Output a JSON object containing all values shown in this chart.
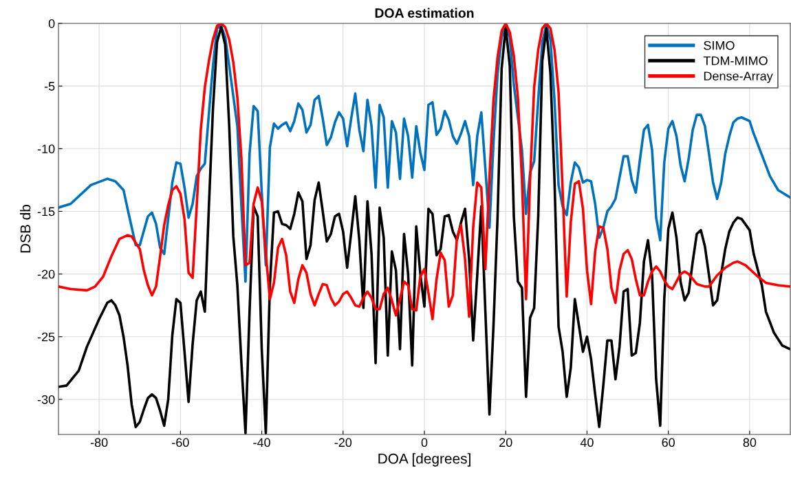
{
  "chart_data": {
    "type": "line",
    "title": "DOA estimation",
    "xlabel": "DOA [degrees]",
    "ylabel": "DSB db",
    "xlim": [
      -90,
      90
    ],
    "ylim": [
      -32.8,
      0
    ],
    "xticks": [
      -80,
      -60,
      -40,
      -20,
      0,
      20,
      40,
      60,
      80
    ],
    "yticks": [
      -30,
      -25,
      -20,
      -15,
      -10,
      -5,
      0
    ],
    "grid": true,
    "legend": "top right",
    "marker": "none",
    "line_style": "solid",
    "series": [
      {
        "name": "SIMO",
        "color": "#0072bd",
        "x": [
          -90,
          -87,
          -82,
          -78,
          -76,
          -74,
          -73,
          -71,
          -70,
          -68,
          -67,
          -66,
          -65,
          -64,
          -62,
          -61,
          -60,
          -59,
          -58,
          -57,
          -56,
          -55,
          -54,
          -53,
          -52,
          -51,
          -50,
          -49,
          -48,
          -46,
          -45,
          -44,
          -43,
          -42,
          -41,
          -40,
          -39,
          -38,
          -37,
          -36,
          -35,
          -34,
          -33,
          -32,
          -31,
          -30,
          -29,
          -28,
          -27,
          -26,
          -25,
          -24,
          -23,
          -22,
          -21,
          -20,
          -19,
          -18,
          -17,
          -16,
          -15,
          -14,
          -13,
          -12,
          -11,
          -10,
          -9,
          -8,
          -7,
          -6,
          -5,
          -4,
          -3,
          -2,
          -1,
          0,
          1,
          2,
          3,
          4,
          5,
          6,
          7,
          8,
          9,
          10,
          11,
          12,
          13,
          14,
          15,
          16,
          17,
          18,
          19,
          20,
          21,
          22,
          23,
          24,
          25,
          26,
          27,
          28,
          29,
          30,
          31,
          32,
          33,
          34,
          35,
          36,
          37,
          38,
          39,
          40,
          41,
          42,
          43,
          44,
          45,
          46,
          47,
          48,
          49,
          50,
          51,
          52,
          53,
          54,
          55,
          56,
          57,
          58,
          59,
          60,
          61,
          62,
          63,
          64,
          65,
          66,
          67,
          68,
          69,
          70,
          71,
          72,
          73,
          74,
          75,
          76,
          77,
          78,
          80,
          81,
          83,
          85,
          87,
          90
        ],
        "values": [
          -14.7,
          -14.4,
          -12.9,
          -12.4,
          -12.6,
          -13.3,
          -14.8,
          -17.7,
          -17.7,
          -15.4,
          -15.1,
          -16.0,
          -17.9,
          -18.4,
          -12.7,
          -11.1,
          -11.2,
          -13.1,
          -15.5,
          -14.4,
          -12.2,
          -11.6,
          -11.2,
          -7.2,
          -3.4,
          -0.4,
          -0.2,
          -1.1,
          -3.4,
          -8.2,
          -14.6,
          -20.6,
          -10.4,
          -6.6,
          -7.0,
          -13.5,
          -19.3,
          -9.9,
          -8.0,
          -8.4,
          -8.1,
          -7.9,
          -8.6,
          -7.8,
          -6.4,
          -6.9,
          -8.7,
          -8.1,
          -6.1,
          -5.8,
          -7.6,
          -9.7,
          -9.1,
          -7.9,
          -7.1,
          -7.6,
          -9.8,
          -7.6,
          -5.6,
          -8.5,
          -10.2,
          -6.1,
          -8.2,
          -13.1,
          -6.5,
          -7.5,
          -13.1,
          -7.8,
          -8.7,
          -12.4,
          -7.6,
          -9.0,
          -12.3,
          -8.2,
          -10.3,
          -11.7,
          -6.5,
          -6.3,
          -8.9,
          -8.4,
          -7.0,
          -7.7,
          -9.0,
          -9.6,
          -8.8,
          -7.8,
          -9.0,
          -12.9,
          -9.0,
          -7.1,
          -11.6,
          -16.3,
          -9.5,
          -4.0,
          -1.1,
          -0.2,
          -1.1,
          -4.9,
          -7.5,
          -10.1,
          -15.2,
          -11.9,
          -11.0,
          -6.1,
          -1.5,
          -0.1,
          -1.3,
          -6.1,
          -12.9,
          -14.6,
          -15.3,
          -12.7,
          -11.1,
          -11.5,
          -12.7,
          -12.5,
          -12.6,
          -14.4,
          -17.1,
          -16.3,
          -15.0,
          -14.6,
          -14.0,
          -12.3,
          -10.6,
          -10.6,
          -12.5,
          -13.5,
          -10.9,
          -8.5,
          -8.1,
          -10.1,
          -15.5,
          -17.3,
          -11.1,
          -8.4,
          -7.8,
          -9.0,
          -11.3,
          -12.6,
          -10.8,
          -8.5,
          -7.3,
          -7.3,
          -8.2,
          -10.4,
          -12.7,
          -14.0,
          -12.7,
          -10.4,
          -9.0,
          -7.9,
          -7.6,
          -7.5,
          -7.8,
          -8.8,
          -10.5,
          -12.2,
          -13.3,
          -13.9
        ]
      },
      {
        "name": "TDM-MIMO",
        "color": "#000000",
        "x": [
          -90,
          -88,
          -85,
          -83,
          -80,
          -78,
          -77,
          -76,
          -75,
          -74,
          -73,
          -72,
          -71,
          -70,
          -69,
          -68,
          -67,
          -66,
          -65,
          -64,
          -63,
          -62,
          -61,
          -60,
          -59,
          -58,
          -57,
          -56,
          -55,
          -54,
          -53,
          -52,
          -51,
          -50,
          -49,
          -48,
          -47,
          -46,
          -45,
          -44,
          -43,
          -42,
          -41,
          -40,
          -39,
          -38,
          -37,
          -36,
          -35,
          -34,
          -33,
          -32,
          -31,
          -30,
          -29,
          -28,
          -27,
          -26,
          -25,
          -24,
          -23,
          -22,
          -21,
          -20,
          -19,
          -18,
          -17,
          -16,
          -15,
          -14,
          -13,
          -12,
          -11,
          -10,
          -9,
          -8,
          -7,
          -6,
          -5,
          -4,
          -3,
          -2,
          -1,
          0,
          1,
          2,
          3,
          4,
          5,
          6,
          7,
          8,
          9,
          10,
          11,
          12,
          13,
          14,
          15,
          16,
          17,
          18,
          19,
          20,
          21,
          22,
          23,
          24,
          25,
          26,
          27,
          28,
          29,
          30,
          31,
          32,
          33,
          34,
          35,
          36,
          37,
          38,
          39,
          40,
          41,
          42,
          43,
          44,
          45,
          46,
          47,
          48,
          49,
          50,
          51,
          52,
          53,
          54,
          55,
          56,
          57,
          58,
          59,
          60,
          61,
          62,
          63,
          64,
          65,
          66,
          67,
          68,
          69,
          70,
          71,
          72,
          73,
          74,
          75,
          76,
          77,
          78,
          80,
          81,
          83,
          84,
          86,
          88,
          90
        ],
        "values": [
          -29.0,
          -28.9,
          -27.7,
          -25.8,
          -23.6,
          -22.3,
          -22.1,
          -22.5,
          -23.3,
          -25.0,
          -27.3,
          -30.4,
          -32.2,
          -31.8,
          -30.8,
          -29.9,
          -29.6,
          -29.9,
          -30.9,
          -32.1,
          -30.0,
          -24.9,
          -22.0,
          -22.3,
          -26.2,
          -30.2,
          -25.6,
          -22.1,
          -21.4,
          -23.0,
          -14.6,
          -6.8,
          -1.5,
          -0.3,
          -1.7,
          -8.2,
          -17.0,
          -20.9,
          -27.1,
          -32.7,
          -23.0,
          -14.6,
          -15.4,
          -26.0,
          -32.7,
          -20.9,
          -15.1,
          -15.0,
          -16.0,
          -16.1,
          -16.4,
          -15.2,
          -13.5,
          -14.2,
          -18.8,
          -17.7,
          -14.1,
          -12.7,
          -15.0,
          -17.4,
          -16.8,
          -15.4,
          -15.2,
          -16.6,
          -19.5,
          -16.7,
          -13.8,
          -17.3,
          -22.7,
          -14.2,
          -18.4,
          -27.1,
          -14.7,
          -17.1,
          -26.5,
          -18.2,
          -19.7,
          -26.0,
          -16.8,
          -20.0,
          -27.3,
          -16.2,
          -20.0,
          -22.6,
          -14.8,
          -15.2,
          -18.5,
          -18.0,
          -15.4,
          -15.3,
          -16.6,
          -17.3,
          -15.9,
          -14.8,
          -18.8,
          -25.3,
          -20.1,
          -14.6,
          -23.0,
          -31.2,
          -24.1,
          -15.4,
          -3.6,
          -0.3,
          -3.4,
          -15.4,
          -20.6,
          -21.1,
          -29.8,
          -23.5,
          -22.7,
          -15.4,
          -3.0,
          -0.4,
          -4.0,
          -12.5,
          -24.2,
          -26.2,
          -29.8,
          -27.5,
          -22.0,
          -24.1,
          -26.2,
          -25.0,
          -26.8,
          -29.6,
          -32.2,
          -28.9,
          -25.3,
          -25.3,
          -28.4,
          -25.8,
          -21.4,
          -21.2,
          -26.5,
          -26.3,
          -23.9,
          -19.0,
          -17.3,
          -20.1,
          -28.4,
          -32.1,
          -22.0,
          -16.4,
          -15.1,
          -17.1,
          -20.6,
          -22.1,
          -21.5,
          -19.0,
          -16.8,
          -16.5,
          -17.8,
          -20.1,
          -22.5,
          -22.1,
          -20.0,
          -18.0,
          -16.6,
          -15.9,
          -15.5,
          -15.6,
          -16.5,
          -18.4,
          -20.9,
          -23.0,
          -24.7,
          -25.7,
          -26.0
        ]
      },
      {
        "name": "Dense-Array",
        "color": "#ff0000",
        "x": [
          -90,
          -87,
          -83,
          -81,
          -79,
          -77,
          -75,
          -73,
          -72,
          -70,
          -69,
          -68,
          -67,
          -66,
          -65,
          -64,
          -63,
          -62,
          -61,
          -60,
          -59,
          -58,
          -57,
          -56,
          -55,
          -54,
          -53,
          -52,
          -51,
          -50,
          -49,
          -48,
          -47,
          -46,
          -45,
          -44,
          -43,
          -42,
          -41,
          -40,
          -39,
          -38,
          -37,
          -36,
          -35,
          -34,
          -33,
          -32,
          -31,
          -30,
          -29,
          -28,
          -27,
          -26,
          -25,
          -24,
          -23,
          -22,
          -21,
          -20,
          -19,
          -18,
          -17,
          -16,
          -15,
          -14,
          -13,
          -12,
          -11,
          -10,
          -9,
          -8,
          -7,
          -6,
          -5,
          -4,
          -3,
          -2,
          -1,
          0,
          1,
          2,
          3,
          4,
          5,
          6,
          7,
          8,
          9,
          10,
          11,
          12,
          13,
          14,
          15,
          16,
          17,
          18,
          19,
          20,
          21,
          22,
          23,
          24,
          25,
          26,
          27,
          28,
          29,
          30,
          31,
          32,
          33,
          34,
          35,
          36,
          37,
          38,
          39,
          40,
          41,
          42,
          43,
          44,
          45,
          46,
          47,
          48,
          49,
          50,
          51,
          52,
          53,
          54,
          55,
          56,
          57,
          58,
          59,
          60,
          61,
          62,
          63,
          64,
          65,
          66,
          67,
          69,
          70,
          72,
          74,
          76,
          77,
          79,
          82,
          84,
          87,
          90
        ],
        "values": [
          -21.0,
          -21.2,
          -21.3,
          -21.0,
          -20.2,
          -18.6,
          -17.2,
          -16.9,
          -17.0,
          -18.0,
          -19.7,
          -20.9,
          -21.7,
          -21.0,
          -18.6,
          -16.1,
          -14.5,
          -13.3,
          -13.0,
          -13.6,
          -15.6,
          -19.9,
          -20.3,
          -14.6,
          -8.5,
          -5.1,
          -3.0,
          -1.3,
          -0.2,
          0,
          -0.3,
          -1.3,
          -3.1,
          -5.9,
          -10.8,
          -19.3,
          -19.1,
          -14.4,
          -13.1,
          -14.2,
          -18.4,
          -22.0,
          -20.7,
          -17.9,
          -17.2,
          -18.5,
          -21.4,
          -22.3,
          -20.4,
          -19.3,
          -19.9,
          -21.6,
          -22.5,
          -21.6,
          -20.8,
          -20.9,
          -21.9,
          -22.5,
          -22.2,
          -21.6,
          -21.4,
          -21.9,
          -22.5,
          -22.6,
          -21.9,
          -21.4,
          -21.9,
          -22.8,
          -22.8,
          -21.6,
          -21.1,
          -22.1,
          -23.3,
          -22.0,
          -20.6,
          -20.9,
          -22.8,
          -22.9,
          -20.2,
          -19.6,
          -21.5,
          -23.6,
          -20.4,
          -18.3,
          -18.9,
          -22.6,
          -21.7,
          -17.1,
          -16.1,
          -18.8,
          -23.4,
          -16.3,
          -12.7,
          -13.1,
          -19.6,
          -12.3,
          -6.1,
          -2.7,
          -0.6,
          0,
          -0.7,
          -2.6,
          -5.9,
          -12.5,
          -22.0,
          -12.5,
          -5.1,
          -2.1,
          -0.4,
          0,
          -0.4,
          -2.1,
          -5.5,
          -13.3,
          -21.8,
          -15.9,
          -12.8,
          -12.6,
          -14.8,
          -19.7,
          -22.4,
          -18.2,
          -16.2,
          -16.3,
          -18.0,
          -21.1,
          -22.3,
          -19.7,
          -18.4,
          -18.1,
          -18.8,
          -20.4,
          -21.7,
          -21.7,
          -20.6,
          -19.8,
          -19.4,
          -19.8,
          -20.5,
          -21.0,
          -21.2,
          -20.6,
          -20.0,
          -19.8,
          -20.0,
          -20.4,
          -20.8,
          -21.0,
          -21.0,
          -20.1,
          -19.5,
          -19.1,
          -19.0,
          -19.3,
          -20.2,
          -20.7,
          -20.9,
          -21.0
        ]
      }
    ]
  }
}
